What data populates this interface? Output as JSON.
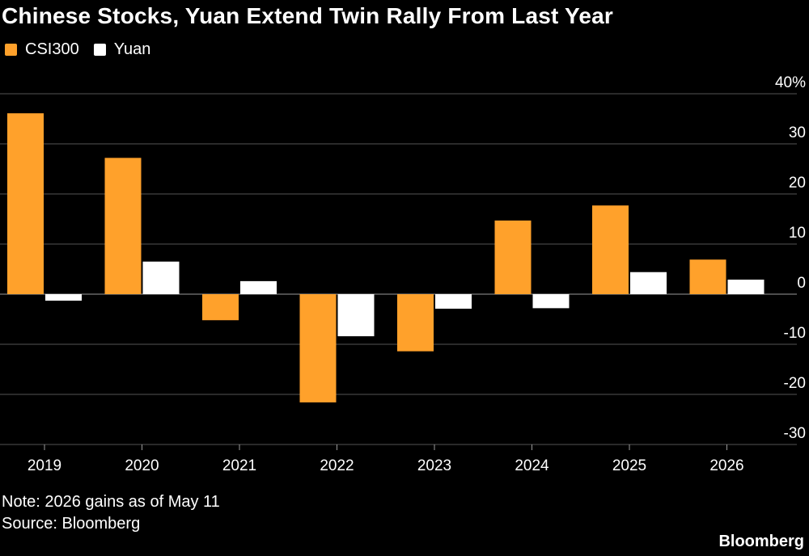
{
  "title": "Chinese Stocks, Yuan Extend Twin Rally From Last Year",
  "note": "Note: 2026 gains as of May 11",
  "source": "Source: Bloomberg",
  "brand": "Bloomberg",
  "colors": {
    "csi300": "#FFA12B",
    "yuan": "#FFFFFF",
    "grid": "#555555",
    "background": "#000000"
  },
  "chart_data": {
    "type": "bar",
    "categories": [
      "2019",
      "2020",
      "2021",
      "2022",
      "2023",
      "2024",
      "2025",
      "2026"
    ],
    "series": [
      {
        "name": "CSI300",
        "values": [
          36.1,
          27.2,
          -5.2,
          -21.6,
          -11.4,
          14.7,
          17.7,
          6.9
        ]
      },
      {
        "name": "Yuan",
        "values": [
          -1.3,
          6.5,
          2.6,
          -8.4,
          -2.9,
          -2.8,
          4.4,
          2.9
        ]
      }
    ],
    "ylim": [
      -30,
      40
    ],
    "yticks": [
      40,
      30,
      20,
      10,
      0,
      -10,
      -20,
      -30
    ],
    "ytick_labels": [
      "40%",
      "30",
      "20",
      "10",
      "0",
      "-10",
      "-20",
      "-30"
    ],
    "grid": true,
    "legend": "top-left"
  }
}
